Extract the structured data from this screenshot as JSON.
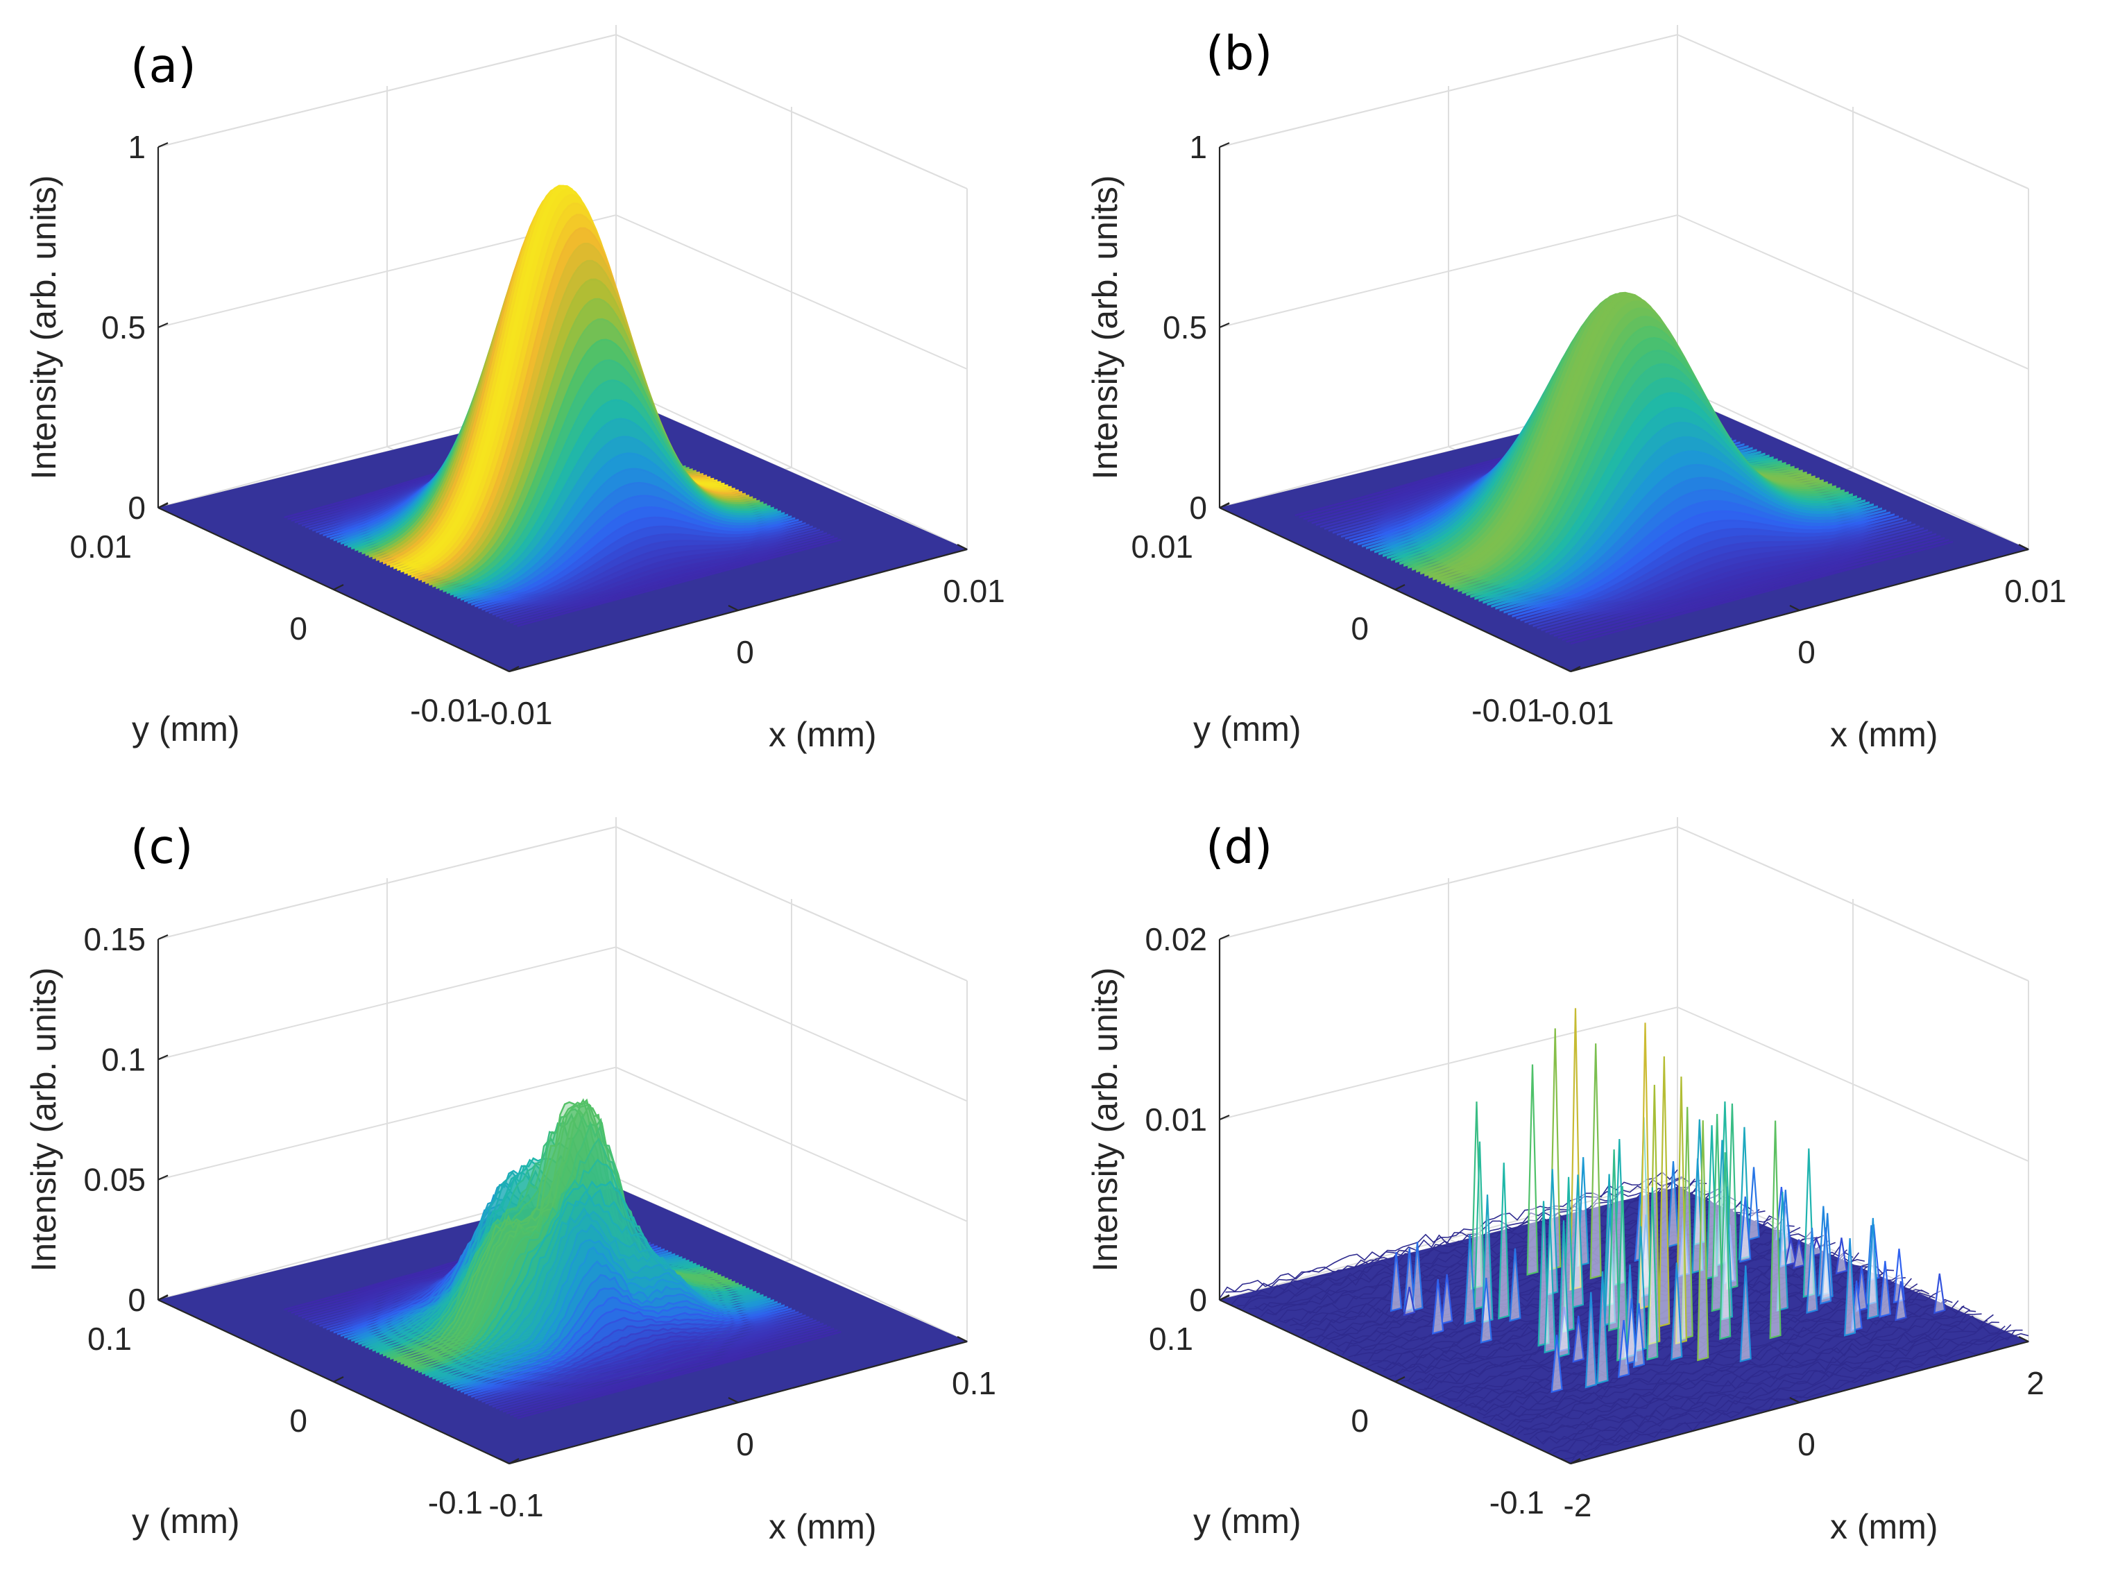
{
  "figure": {
    "colormap": [
      "#3e26a8",
      "#2f61f0",
      "#1d97d7",
      "#1fb8a8",
      "#4ac16d",
      "#a6be36",
      "#f0b82e",
      "#f9fb15"
    ],
    "floor_color": "#35339a"
  },
  "chart_data": [
    {
      "panel": "(a)",
      "type": "surface",
      "xlabel": "x (mm)",
      "ylabel": "y (mm)",
      "zlabel": "Intensity (arb. units)",
      "xlim": [
        -0.01,
        0.01
      ],
      "ylim": [
        -0.01,
        0.01
      ],
      "zlim": [
        0,
        1
      ],
      "xticks": [
        "-0.01",
        "0",
        "0.01"
      ],
      "yticks": [
        "-0.01",
        "0",
        "0.01"
      ],
      "zticks": [
        "0",
        "0.5",
        "1"
      ],
      "surface": {
        "shape": "gaussian_peak",
        "peak_intensity": 0.95,
        "center": [
          0,
          0
        ],
        "width_mm": 0.0022
      }
    },
    {
      "panel": "(b)",
      "type": "surface",
      "xlabel": "x (mm)",
      "ylabel": "y (mm)",
      "zlabel": "Intensity (arb. units)",
      "xlim": [
        -0.01,
        0.01
      ],
      "ylim": [
        -0.01,
        0.01
      ],
      "zlim": [
        0,
        1
      ],
      "xticks": [
        "-0.01",
        "0",
        "0.01"
      ],
      "yticks": [
        "-0.01",
        "0",
        "0.01"
      ],
      "zticks": [
        "0",
        "0.5",
        "1"
      ],
      "surface": {
        "shape": "gaussian_peak",
        "peak_intensity": 0.65,
        "center": [
          0,
          0
        ],
        "width_mm": 0.0026
      }
    },
    {
      "panel": "(c)",
      "type": "surface",
      "xlabel": "x (mm)",
      "ylabel": "y (mm)",
      "zlabel": "Intensity (arb. units)",
      "xlim": [
        -0.1,
        0.1
      ],
      "ylim": [
        -0.1,
        0.1
      ],
      "zlim": [
        0,
        0.15
      ],
      "xticks": [
        "-0.1",
        "0",
        "0.1"
      ],
      "yticks": [
        "-0.1",
        "0",
        "0.1"
      ],
      "zticks": [
        "0",
        "0.05",
        "0.1",
        "0.15"
      ],
      "surface": {
        "shape": "distorted_peak",
        "peak_intensity": 0.088,
        "center": [
          0,
          0
        ],
        "width_mm": 0.022
      }
    },
    {
      "panel": "(d)",
      "type": "surface",
      "xlabel": "x (mm)",
      "ylabel": "y (mm)",
      "zlabel": "Intensity (arb. units)",
      "xlim": [
        -2,
        2
      ],
      "ylim": [
        -0.1,
        0.1
      ],
      "zlim": [
        0,
        0.02
      ],
      "xticks": [
        "-2",
        "0",
        "2"
      ],
      "yticks": [
        "-0.1",
        "0",
        "0.1"
      ],
      "zticks": [
        "0",
        "0.01",
        "0.02"
      ],
      "surface": {
        "shape": "speckle_spikes",
        "peak_intensity": 0.0165,
        "center": [
          0.3,
          0
        ],
        "spread_x_mm": 1.6,
        "spread_y_mm": 0.06
      }
    }
  ]
}
